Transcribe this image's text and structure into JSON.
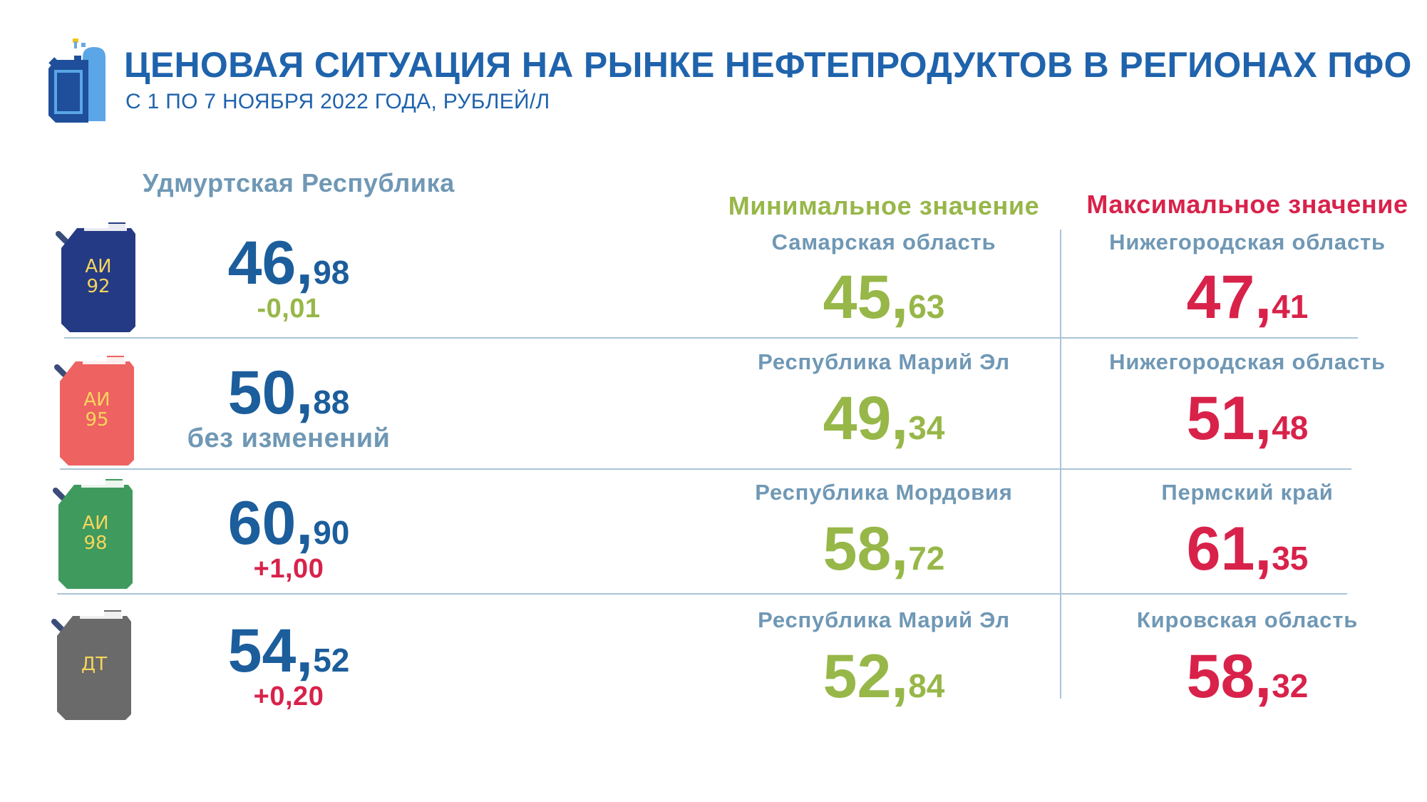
{
  "header": {
    "title": "ЦЕНОВАЯ СИТУАЦИЯ НА РЫНКЕ НЕФТЕПРОДУКТОВ В РЕГИОНАХ ПФО",
    "subtitle": "С 1 ПО 7 НОЯБРЯ 2022 ГОДА, РУБЛЕЙ/Л",
    "logo_icon": "fuel-canister-and-gas-cylinder-icon"
  },
  "region_label": "Удмуртская Республика",
  "min_heading": "Минимальное значение",
  "max_heading": "Максимальное значение",
  "colors": {
    "udmurt": "#1c5d9c",
    "min": "#97b749",
    "max": "#d8224a",
    "label": "#6f98b5"
  },
  "rows": [
    {
      "fuel_line1": "АИ",
      "fuel_line2": "92",
      "can_color": "#253a84",
      "udm_int": "46,",
      "udm_dec": "98",
      "change": "-0,01",
      "min_region": "Самарская область",
      "min_int": "45,",
      "min_dec": "63",
      "max_region": "Нижегородская область",
      "max_int": "47,",
      "max_dec": "41"
    },
    {
      "fuel_line1": "АИ",
      "fuel_line2": "95",
      "can_color": "#ee6262",
      "udm_int": "50,",
      "udm_dec": "88",
      "change": "без изменений",
      "min_region": "Республика Марий Эл",
      "min_int": "49,",
      "min_dec": "34",
      "max_region": "Нижегородская область",
      "max_int": "51,",
      "max_dec": "48"
    },
    {
      "fuel_line1": "АИ",
      "fuel_line2": "98",
      "can_color": "#3f9a5e",
      "udm_int": "60,",
      "udm_dec": "90",
      "change": "+1,00",
      "min_region": "Республика Мордовия",
      "min_int": "58,",
      "min_dec": "72",
      "max_region": "Пермский край",
      "max_int": "61,",
      "max_dec": "35"
    },
    {
      "fuel_line1": "ДТ",
      "fuel_line2": "",
      "can_color": "#6a6a6a",
      "udm_int": "54,",
      "udm_dec": "52",
      "change": "+0,20",
      "min_region": "Республика Марий Эл",
      "min_int": "52,",
      "min_dec": "84",
      "max_region": "Кировская область",
      "max_int": "58,",
      "max_dec": "32"
    }
  ]
}
